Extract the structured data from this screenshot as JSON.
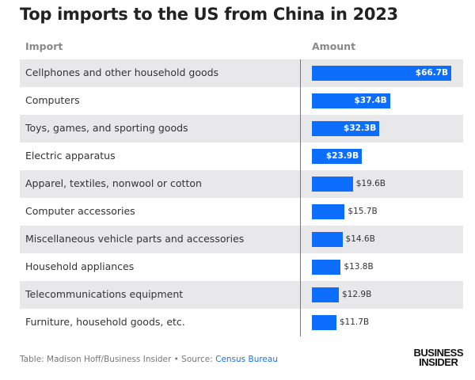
{
  "title": "Top imports to the US from China in 2023",
  "chart_data": {
    "type": "table",
    "columns": [
      "Import",
      "Amount"
    ],
    "rows": [
      {
        "label": "Cellphones and other household goods",
        "value": 66.7,
        "display": "$66.7B"
      },
      {
        "label": "Computers",
        "value": 37.4,
        "display": "$37.4B"
      },
      {
        "label": "Toys, games, and sporting goods",
        "value": 32.3,
        "display": "$32.3B"
      },
      {
        "label": "Electric apparatus",
        "value": 23.9,
        "display": "$23.9B"
      },
      {
        "label": "Apparel, textiles, nonwool or cotton",
        "value": 19.6,
        "display": "$19.6B"
      },
      {
        "label": "Computer accessories",
        "value": 15.7,
        "display": "$15.7B"
      },
      {
        "label": "Miscellaneous vehicle parts and accessories",
        "value": 14.6,
        "display": "$14.6B"
      },
      {
        "label": "Household appliances",
        "value": 13.8,
        "display": "$13.8B"
      },
      {
        "label": "Telecommunications equipment",
        "value": 12.9,
        "display": "$12.9B"
      },
      {
        "label": "Furniture, household goods, etc.",
        "value": 11.7,
        "display": "$11.7B"
      }
    ],
    "bar_color": "#0d6efd"
  },
  "footer": {
    "credit": "Table: Madison Hoff/Business Insider • Source: ",
    "source_link": "Census Bureau"
  },
  "logo": {
    "line1": "BUSINESS",
    "line2": "INSIDER"
  }
}
